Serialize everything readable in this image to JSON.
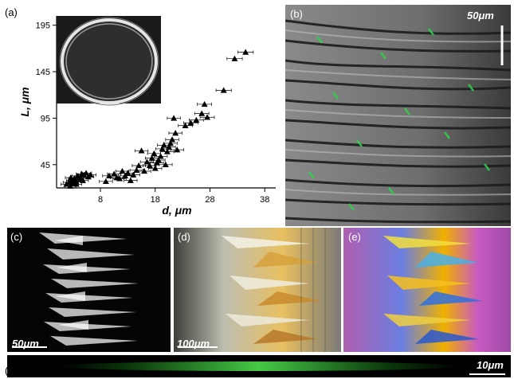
{
  "panels": {
    "a": {
      "label": "(a)"
    },
    "b": {
      "label": "(b)",
      "scale": "50μm"
    },
    "c": {
      "label": "(c)",
      "scale": "50μm"
    },
    "d": {
      "label": "(d)",
      "scale": "100μm"
    },
    "e": {
      "label": "(e)"
    },
    "f": {
      "label": "(f)",
      "scale": "10μm"
    }
  },
  "chart_data": {
    "type": "scatter",
    "xlabel": "d, μm",
    "ylabel": "L, μm",
    "xlim": [
      0,
      40
    ],
    "ylim": [
      20,
      205
    ],
    "xticks": [
      8,
      18,
      28,
      38
    ],
    "yticks": [
      45,
      95,
      145,
      195
    ],
    "marker": "triangle",
    "points": [
      {
        "x": 1.8,
        "y": 24,
        "xerr": 1.0
      },
      {
        "x": 2.2,
        "y": 26,
        "xerr": 1.0
      },
      {
        "x": 2.5,
        "y": 22,
        "xerr": 1.0
      },
      {
        "x": 2.8,
        "y": 28,
        "xerr": 1.0
      },
      {
        "x": 3.0,
        "y": 25,
        "xerr": 1.0
      },
      {
        "x": 3.2,
        "y": 30,
        "xerr": 1.0
      },
      {
        "x": 3.5,
        "y": 27,
        "xerr": 1.0
      },
      {
        "x": 3.8,
        "y": 33,
        "xerr": 1.0
      },
      {
        "x": 4.0,
        "y": 29,
        "xerr": 1.0
      },
      {
        "x": 4.3,
        "y": 31,
        "xerr": 1.0
      },
      {
        "x": 4.6,
        "y": 35,
        "xerr": 1.0
      },
      {
        "x": 5.0,
        "y": 34,
        "xerr": 1.0
      },
      {
        "x": 5.4,
        "y": 36,
        "xerr": 1.0
      },
      {
        "x": 5.8,
        "y": 32,
        "xerr": 1.0
      },
      {
        "x": 6.2,
        "y": 34,
        "xerr": 1.0
      },
      {
        "x": 4.8,
        "y": 28,
        "xerr": 1.0
      },
      {
        "x": 3.6,
        "y": 24,
        "xerr": 1.0
      },
      {
        "x": 2.6,
        "y": 31,
        "xerr": 1.0
      },
      {
        "x": 9.0,
        "y": 27,
        "xerr": 1.2
      },
      {
        "x": 9.6,
        "y": 33,
        "xerr": 1.2
      },
      {
        "x": 10.5,
        "y": 35,
        "xerr": 1.2
      },
      {
        "x": 11.0,
        "y": 31,
        "xerr": 1.2
      },
      {
        "x": 11.5,
        "y": 30,
        "xerr": 1.2
      },
      {
        "x": 12.0,
        "y": 38,
        "xerr": 1.2
      },
      {
        "x": 12.5,
        "y": 33,
        "xerr": 1.2
      },
      {
        "x": 13.0,
        "y": 36,
        "xerr": 1.2
      },
      {
        "x": 13.5,
        "y": 28,
        "xerr": 1.2
      },
      {
        "x": 14.0,
        "y": 34,
        "xerr": 1.2
      },
      {
        "x": 14.6,
        "y": 39,
        "xerr": 1.2
      },
      {
        "x": 15.0,
        "y": 44,
        "xerr": 1.2
      },
      {
        "x": 15.5,
        "y": 60,
        "xerr": 1.2
      },
      {
        "x": 16.0,
        "y": 38,
        "xerr": 1.2
      },
      {
        "x": 16.5,
        "y": 48,
        "xerr": 1.2
      },
      {
        "x": 17.0,
        "y": 44,
        "xerr": 1.2
      },
      {
        "x": 17.4,
        "y": 52,
        "xerr": 1.2
      },
      {
        "x": 17.8,
        "y": 57,
        "xerr": 1.2
      },
      {
        "x": 18.0,
        "y": 41,
        "xerr": 1.2
      },
      {
        "x": 18.3,
        "y": 47,
        "xerr": 1.2
      },
      {
        "x": 18.6,
        "y": 50,
        "xerr": 1.2
      },
      {
        "x": 19.0,
        "y": 54,
        "xerr": 1.2
      },
      {
        "x": 19.3,
        "y": 62,
        "xerr": 1.2
      },
      {
        "x": 19.6,
        "y": 66,
        "xerr": 1.2
      },
      {
        "x": 19.9,
        "y": 45,
        "xerr": 1.2
      },
      {
        "x": 20.2,
        "y": 59,
        "xerr": 1.2
      },
      {
        "x": 20.5,
        "y": 64,
        "xerr": 1.2
      },
      {
        "x": 20.8,
        "y": 68,
        "xerr": 1.2
      },
      {
        "x": 21.1,
        "y": 72,
        "xerr": 1.2
      },
      {
        "x": 21.4,
        "y": 95,
        "xerr": 1.2
      },
      {
        "x": 21.7,
        "y": 79,
        "xerr": 1.2
      },
      {
        "x": 22.0,
        "y": 61,
        "xerr": 1.2
      },
      {
        "x": 23.5,
        "y": 87,
        "xerr": 1.3
      },
      {
        "x": 24.5,
        "y": 90,
        "xerr": 1.3
      },
      {
        "x": 25.5,
        "y": 93,
        "xerr": 1.3
      },
      {
        "x": 26.5,
        "y": 100,
        "xerr": 1.3
      },
      {
        "x": 27.0,
        "y": 110,
        "xerr": 1.3
      },
      {
        "x": 27.5,
        "y": 96,
        "xerr": 1.3
      },
      {
        "x": 30.5,
        "y": 125,
        "xerr": 1.4
      },
      {
        "x": 32.5,
        "y": 159,
        "xerr": 1.4
      },
      {
        "x": 34.5,
        "y": 166,
        "xerr": 1.4
      }
    ]
  }
}
